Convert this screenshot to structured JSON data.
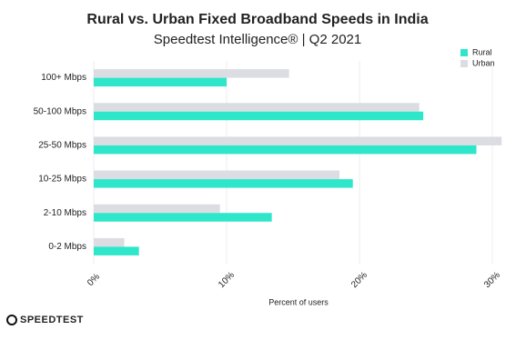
{
  "chart_data": {
    "type": "hbar",
    "title": "Rural vs. Urban Fixed Broadband Speeds in India",
    "subtitle": "Speedtest Intelligence® | Q2 2021",
    "x_label": "Percent of users",
    "logo": "SPEEDTEST",
    "categories": [
      "100+ Mbps",
      "50-100 Mbps",
      "25-50 Mbps",
      "10-25 Mbps",
      "2-10 Mbps",
      "0-2 Mbps"
    ],
    "series": [
      {
        "name": "Rural",
        "color": "#2ee6c9",
        "values": [
          10.0,
          24.8,
          28.8,
          19.5,
          13.4,
          3.4
        ]
      },
      {
        "name": "Urban",
        "color": "#dcdde3",
        "values": [
          14.7,
          24.5,
          30.7,
          18.5,
          9.5,
          2.3
        ]
      }
    ],
    "xlim": [
      0,
      31
    ],
    "xticks": [
      {
        "value": 0,
        "label": "0%"
      },
      {
        "value": 10,
        "label": "10%"
      },
      {
        "value": 20,
        "label": "20%"
      },
      {
        "value": 30,
        "label": "30%"
      }
    ],
    "grid": true,
    "legend": "top-right"
  }
}
